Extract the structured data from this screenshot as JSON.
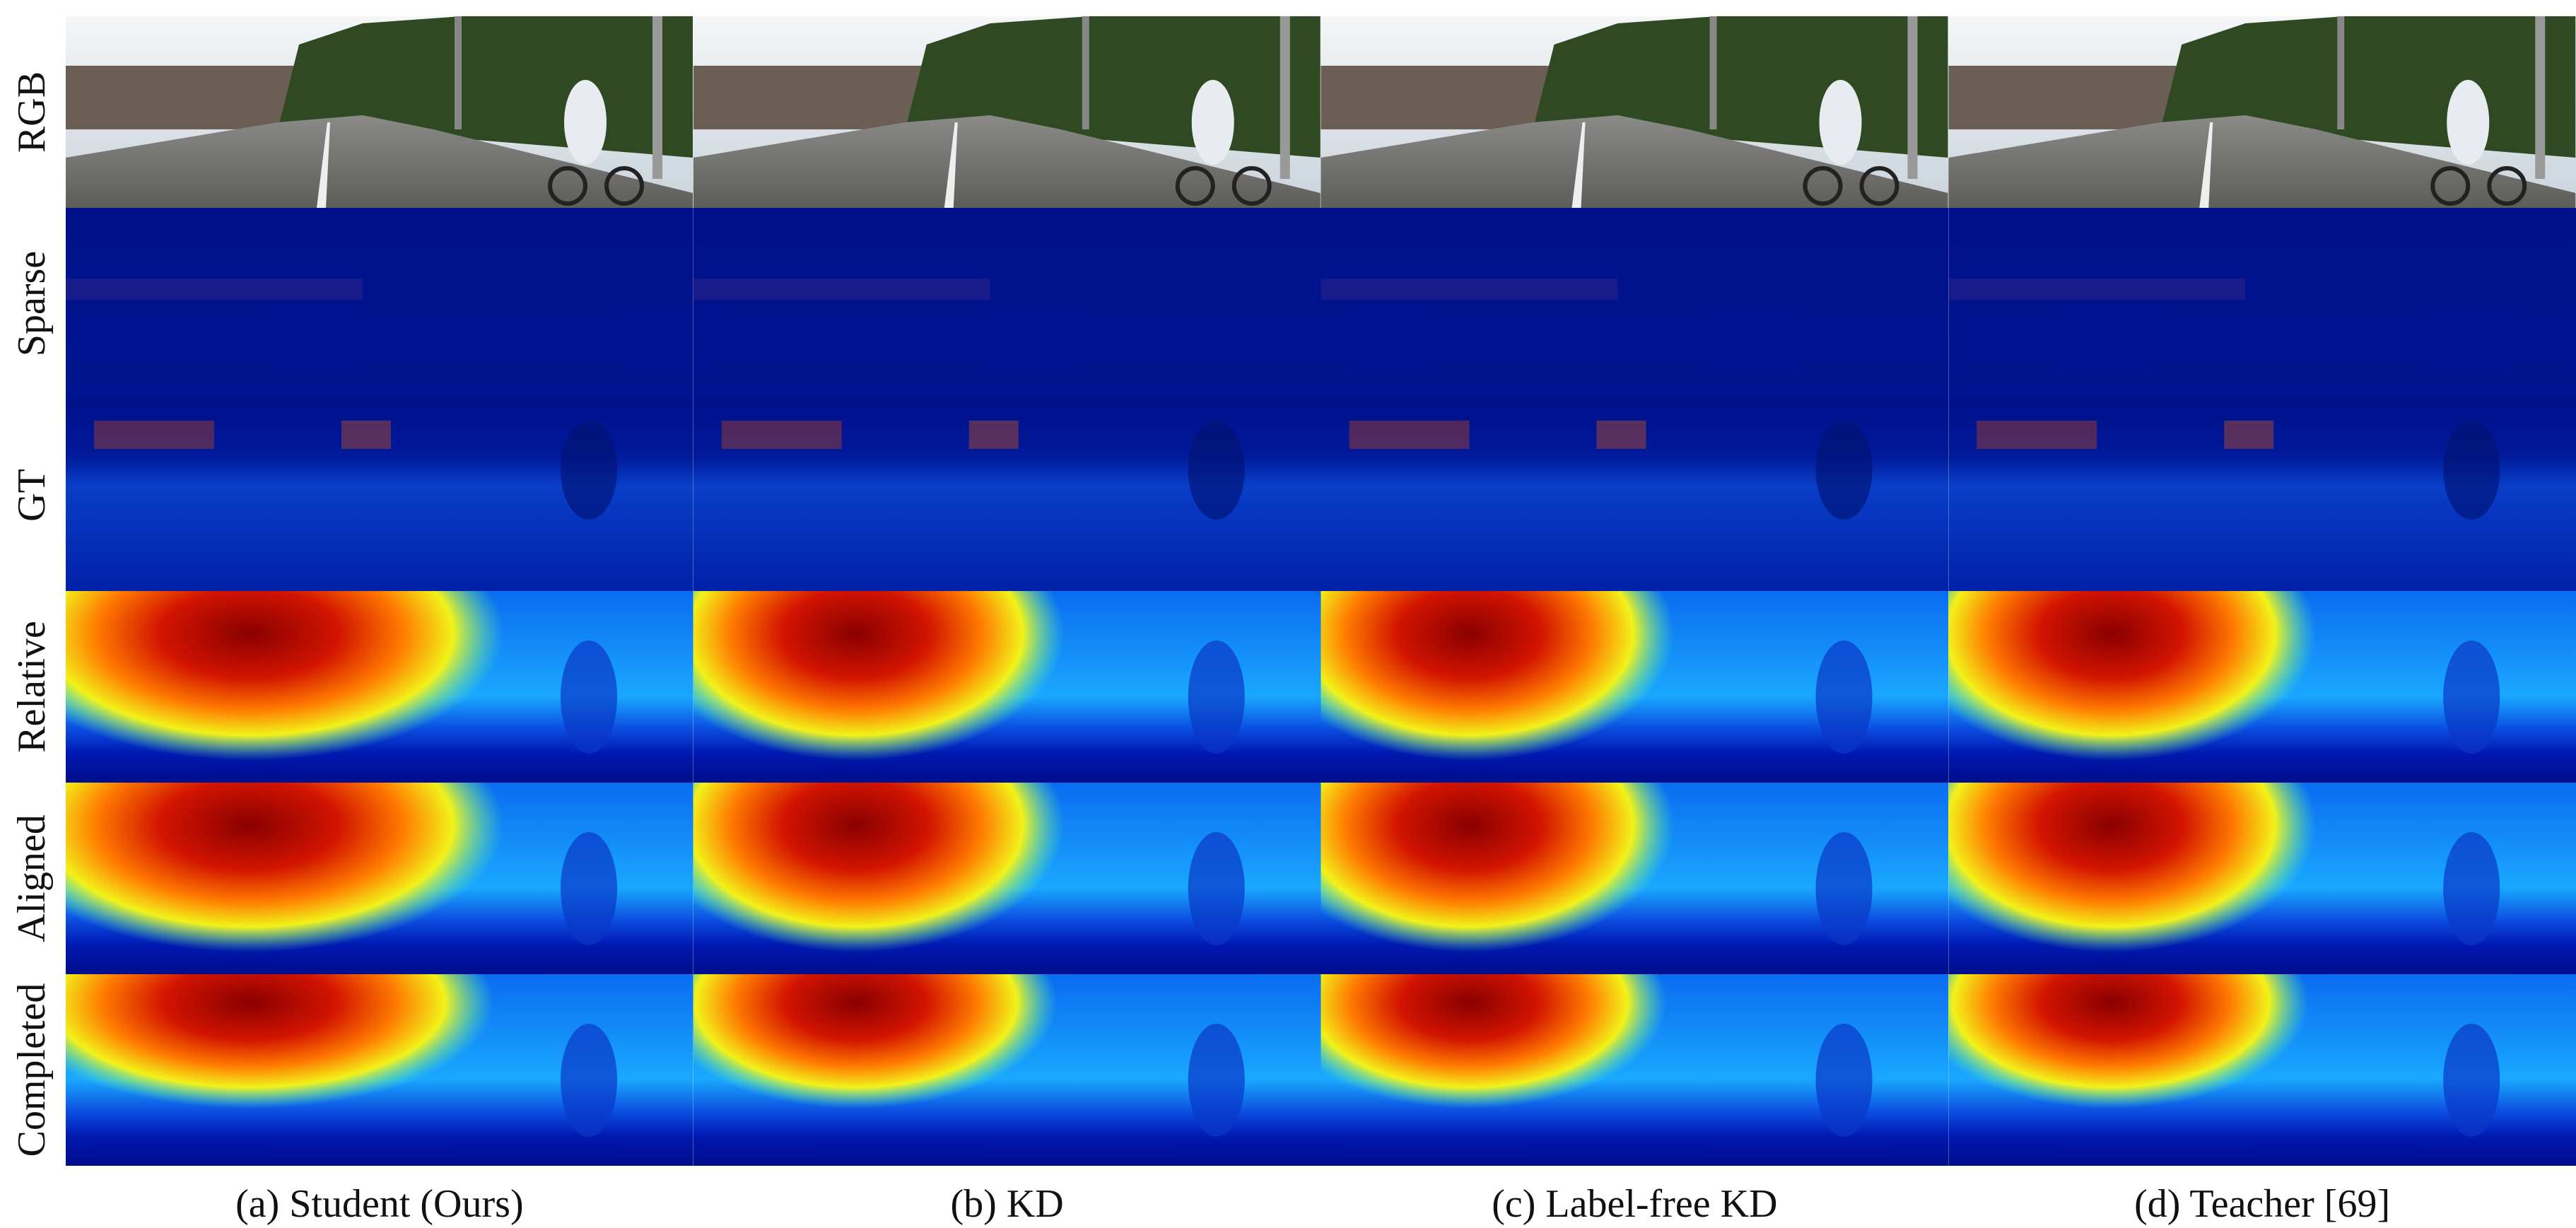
{
  "figure": {
    "rows": [
      "RGB",
      "Sparse",
      "GT",
      "Relative",
      "Aligned",
      "Completed"
    ],
    "columns": [
      "(a) Student (Ours)",
      "(b) KD",
      "(c) Label-free KD",
      "(d) Teacher [69]"
    ]
  }
}
